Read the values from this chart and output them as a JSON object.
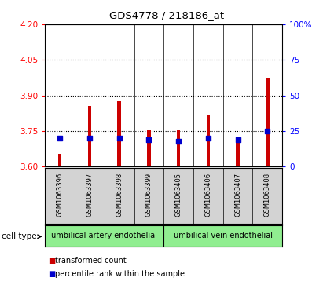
{
  "title": "GDS4778 / 218186_at",
  "samples": [
    "GSM1063396",
    "GSM1063397",
    "GSM1063398",
    "GSM1063399",
    "GSM1063405",
    "GSM1063406",
    "GSM1063407",
    "GSM1063408"
  ],
  "transformed_count": [
    3.655,
    3.855,
    3.875,
    3.755,
    3.755,
    3.815,
    3.705,
    3.975
  ],
  "percentile_rank": [
    20,
    20,
    20,
    19,
    18,
    20,
    19,
    25
  ],
  "ylim_left": [
    3.6,
    4.2
  ],
  "ylim_right": [
    0,
    100
  ],
  "yticks_left": [
    3.6,
    3.75,
    3.9,
    4.05,
    4.2
  ],
  "yticks_right": [
    0,
    25,
    50,
    75,
    100
  ],
  "ytick_labels_right": [
    "0",
    "25",
    "50",
    "75",
    "100%"
  ],
  "bar_color": "#cc0000",
  "percentile_color": "#0000cc",
  "base_value": 3.6,
  "group1_label": "umbilical artery endothelial",
  "group2_label": "umbilical vein endothelial",
  "group1_indices": [
    0,
    1,
    2,
    3
  ],
  "group2_indices": [
    4,
    5,
    6,
    7
  ],
  "cell_type_label": "cell type",
  "legend_bar_label": "transformed count",
  "legend_dot_label": "percentile rank within the sample",
  "grid_lines": [
    3.75,
    3.9,
    4.05
  ],
  "background_color": "#ffffff",
  "bar_bg_color": "#d3d3d3",
  "group_bg_color": "#90ee90",
  "chart_bg_color": "#ffffff"
}
